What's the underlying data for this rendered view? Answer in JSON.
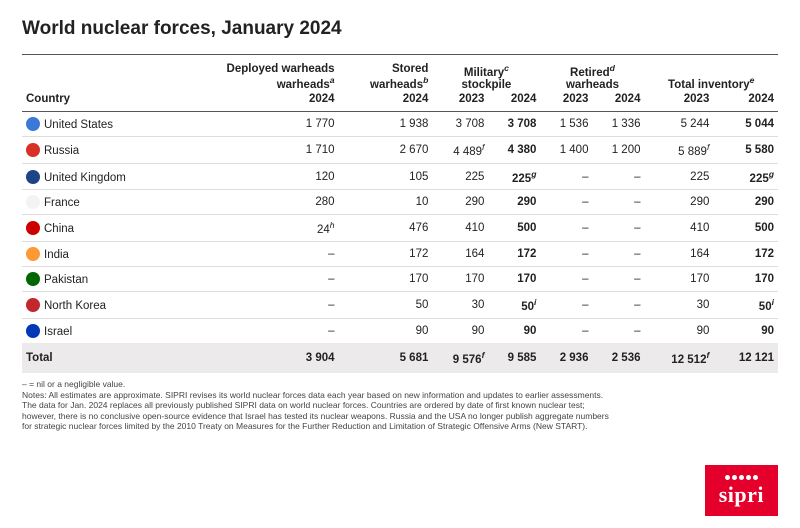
{
  "title": "World nuclear forces, January 2024",
  "columns": {
    "country": "Country",
    "deployed": {
      "label": "Deployed warheads",
      "sup": "a",
      "years": [
        "2024"
      ]
    },
    "stored": {
      "label": "Stored warheads",
      "sup": "b",
      "years": [
        "2024"
      ]
    },
    "military": {
      "label": "Military",
      "sup": "c",
      "label2": "stockpile",
      "years": [
        "2023",
        "2024"
      ]
    },
    "retired": {
      "label": "Retired",
      "sup": "d",
      "label2": "warheads",
      "years": [
        "2023",
        "2024"
      ]
    },
    "total": {
      "label": "Total inventory",
      "sup": "e",
      "years": [
        "2023",
        "2024"
      ]
    }
  },
  "flag_colors": {
    "United States": "#3c78d8",
    "Russia": "#d93025",
    "United Kingdom": "#1c4587",
    "France": "#f1f3f4",
    "China": "#cc0000",
    "India": "#ff9933",
    "Pakistan": "#006600",
    "North Korea": "#c1272d",
    "Israel": "#0038b8"
  },
  "rows": [
    {
      "country": "United States",
      "deployed": "1 770",
      "stored": "1 938",
      "mil23": "3 708",
      "mil24": "3 708",
      "ret23": "1 536",
      "ret24": "1 336",
      "tot23": "5 244",
      "tot24": "5 044"
    },
    {
      "country": "Russia",
      "deployed": "1 710",
      "stored": "2 670",
      "mil23": "4 489",
      "mil23_sup": "f",
      "mil24": "4 380",
      "ret23": "1 400",
      "ret24": "1 200",
      "tot23": "5 889",
      "tot23_sup": "f",
      "tot24": "5 580"
    },
    {
      "country": "United Kingdom",
      "deployed": "120",
      "stored": "105",
      "mil23": "225",
      "mil24": "225",
      "mil24_sup": "g",
      "ret23": "–",
      "ret24": "–",
      "tot23": "225",
      "tot24": "225",
      "tot24_sup": "g"
    },
    {
      "country": "France",
      "deployed": "280",
      "stored": "10",
      "mil23": "290",
      "mil24": "290",
      "ret23": "–",
      "ret24": "–",
      "tot23": "290",
      "tot24": "290"
    },
    {
      "country": "China",
      "deployed": "24",
      "deployed_sup": "h",
      "stored": "476",
      "mil23": "410",
      "mil24": "500",
      "ret23": "–",
      "ret24": "–",
      "tot23": "410",
      "tot24": "500"
    },
    {
      "country": "India",
      "deployed": "–",
      "stored": "172",
      "mil23": "164",
      "mil24": "172",
      "ret23": "–",
      "ret24": "–",
      "tot23": "164",
      "tot24": "172"
    },
    {
      "country": "Pakistan",
      "deployed": "–",
      "stored": "170",
      "mil23": "170",
      "mil24": "170",
      "ret23": "–",
      "ret24": "–",
      "tot23": "170",
      "tot24": "170"
    },
    {
      "country": "North Korea",
      "deployed": "–",
      "stored": "50",
      "mil23": "30",
      "mil24": "50",
      "mil24_sup": "i",
      "ret23": "–",
      "ret24": "–",
      "tot23": "30",
      "tot24": "50",
      "tot24_sup": "i"
    },
    {
      "country": "Israel",
      "deployed": "–",
      "stored": "90",
      "mil23": "90",
      "mil24": "90",
      "ret23": "–",
      "ret24": "–",
      "tot23": "90",
      "tot24": "90"
    }
  ],
  "total": {
    "label": "Total",
    "deployed": "3 904",
    "stored": "5 681",
    "mil23": "9 576",
    "mil23_sup": "f",
    "mil24": "9 585",
    "ret23": "2 936",
    "ret24": "2 536",
    "tot23": "12 512",
    "tot23_sup": "f",
    "tot24": "12 121"
  },
  "notes": [
    "– = nil or a negligible value.",
    "Notes: All estimates are approximate. SIPRI revises its world nuclear forces data each year based on new information and updates to earlier assessments.",
    "The data for Jan. 2024 replaces all previously published SIPRI data on world nuclear forces. Countries are ordered by date of first known nuclear test;",
    "however, there is no conclusive open-source evidence that Israel has tested its nuclear weapons. Russia and the USA no longer publish aggregate numbers",
    "for strategic nuclear forces limited by the 2010 Treaty on Measures for the Further Reduction and Limitation of Strategic Offensive Arms (New START)."
  ],
  "logo": "sipri",
  "colors": {
    "accent": "#e4002b",
    "border": "#555555",
    "rowline": "#dddddd",
    "totalbg": "#eceaea",
    "text": "#222222"
  },
  "typography": {
    "title_pt": 19,
    "body_pt": 11.5,
    "notes_pt": 8.5
  }
}
